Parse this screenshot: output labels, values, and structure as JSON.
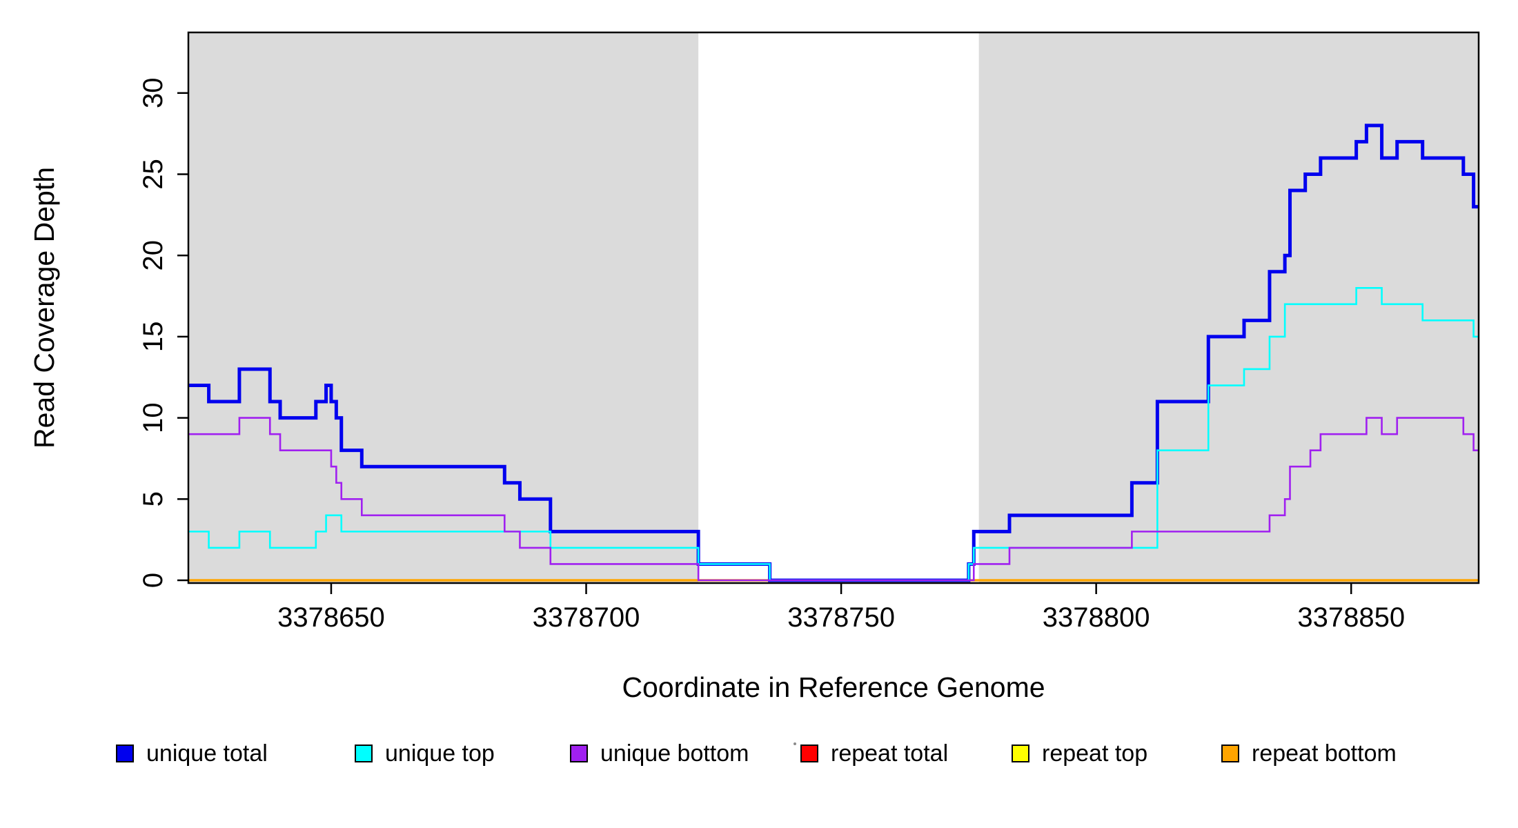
{
  "page": {
    "background": "#FFFFFF"
  },
  "chart_data": {
    "type": "line",
    "subtype": "step",
    "title": "",
    "xlabel": "Coordinate in Reference Genome",
    "ylabel": "Read Coverage Depth",
    "xlim": [
      3378622,
      3378875
    ],
    "ylim": [
      0,
      33.7
    ],
    "grid": "off",
    "legend_position": "bottom",
    "x_ticks": [
      3378650,
      3378700,
      3378750,
      3378800,
      3378850
    ],
    "y_ticks": [
      0,
      5,
      10,
      15,
      20,
      25,
      30
    ],
    "shaded_regions": [
      {
        "x0": 3378622,
        "x1": 3378722,
        "color": "#DBDBDB"
      },
      {
        "x0": 3378777,
        "x1": 3378875,
        "color": "#DBDBDB"
      }
    ],
    "x_end": 3378875,
    "series": [
      {
        "name": "repeat total",
        "color": "#FF0000",
        "width": 2.6,
        "steps": [
          [
            3378622,
            0
          ]
        ]
      },
      {
        "name": "repeat top",
        "color": "#FFFF00",
        "width": 2.6,
        "steps": [
          [
            3378622,
            0
          ]
        ]
      },
      {
        "name": "repeat bottom",
        "color": "#FFA500",
        "width": 3.5,
        "steps": [
          [
            3378622,
            0
          ]
        ]
      },
      {
        "name": "unique total",
        "color": "#0000EE",
        "width": 5,
        "steps": [
          [
            3378622,
            12
          ],
          [
            3378626,
            11
          ],
          [
            3378632,
            13
          ],
          [
            3378638,
            11
          ],
          [
            3378640,
            10
          ],
          [
            3378647,
            11
          ],
          [
            3378649,
            12
          ],
          [
            3378650,
            11
          ],
          [
            3378651,
            10
          ],
          [
            3378652,
            8
          ],
          [
            3378656,
            7
          ],
          [
            3378684,
            6
          ],
          [
            3378687,
            5
          ],
          [
            3378693,
            3
          ],
          [
            3378722,
            1
          ],
          [
            3378736,
            0
          ],
          [
            3378775,
            1
          ],
          [
            3378776,
            3
          ],
          [
            3378783,
            4
          ],
          [
            3378807,
            6
          ],
          [
            3378812,
            11
          ],
          [
            3378822,
            15
          ],
          [
            3378829,
            16
          ],
          [
            3378834,
            19
          ],
          [
            3378837,
            20
          ],
          [
            3378838,
            24
          ],
          [
            3378841,
            25
          ],
          [
            3378844,
            26
          ],
          [
            3378851,
            27
          ],
          [
            3378853,
            28
          ],
          [
            3378856,
            26
          ],
          [
            3378859,
            27
          ],
          [
            3378864,
            26
          ],
          [
            3378872,
            25
          ],
          [
            3378874,
            23
          ]
        ]
      },
      {
        "name": "unique top",
        "color": "#00FFFF",
        "width": 2.6,
        "steps": [
          [
            3378622,
            3
          ],
          [
            3378626,
            2
          ],
          [
            3378632,
            3
          ],
          [
            3378638,
            2
          ],
          [
            3378647,
            3
          ],
          [
            3378649,
            4
          ],
          [
            3378652,
            3
          ],
          [
            3378693,
            2
          ],
          [
            3378722,
            1
          ],
          [
            3378736,
            0
          ],
          [
            3378775,
            1
          ],
          [
            3378776,
            2
          ],
          [
            3378812,
            8
          ],
          [
            3378822,
            12
          ],
          [
            3378829,
            13
          ],
          [
            3378834,
            15
          ],
          [
            3378837,
            17
          ],
          [
            3378851,
            18
          ],
          [
            3378856,
            17
          ],
          [
            3378864,
            16
          ],
          [
            3378874,
            15
          ]
        ]
      },
      {
        "name": "unique bottom",
        "color": "#A020F0",
        "width": 2.6,
        "steps": [
          [
            3378622,
            9
          ],
          [
            3378632,
            10
          ],
          [
            3378638,
            9
          ],
          [
            3378640,
            8
          ],
          [
            3378650,
            7
          ],
          [
            3378651,
            6
          ],
          [
            3378652,
            5
          ],
          [
            3378656,
            4
          ],
          [
            3378684,
            3
          ],
          [
            3378687,
            2
          ],
          [
            3378693,
            1
          ],
          [
            3378722,
            0
          ],
          [
            3378776,
            1
          ],
          [
            3378783,
            2
          ],
          [
            3378807,
            3
          ],
          [
            3378834,
            4
          ],
          [
            3378837,
            5
          ],
          [
            3378838,
            7
          ],
          [
            3378842,
            8
          ],
          [
            3378844,
            9
          ],
          [
            3378853,
            10
          ],
          [
            3378856,
            9
          ],
          [
            3378859,
            10
          ],
          [
            3378872,
            9
          ],
          [
            3378874,
            8
          ]
        ]
      }
    ]
  },
  "legend": {
    "items": [
      {
        "label": "unique total",
        "color": "#0000EE"
      },
      {
        "label": "unique top",
        "color": "#00FFFF"
      },
      {
        "label": "unique bottom",
        "color": "#A020F0"
      },
      {
        "label": "repeat total",
        "color": "#FF0000"
      },
      {
        "label": "repeat top",
        "color": "#FFFF00"
      },
      {
        "label": "repeat bottom",
        "color": "#FFA500"
      }
    ]
  }
}
